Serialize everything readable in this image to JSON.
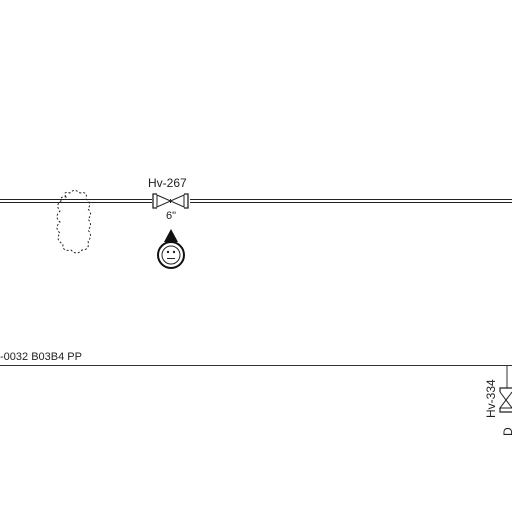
{
  "diagram": {
    "main_pipe": {
      "valve_tag": "Hv-267",
      "valve_size": "6\"",
      "indicator": "operator-faceplate-indicator"
    },
    "lower_pipe": {
      "line_label": "-0032 B03B4 PP",
      "valve_tag": "Hv-334",
      "valve_extra": "D"
    },
    "cloud_marker": "revision-cloud"
  },
  "colors": {
    "line": "#222222",
    "background": "#ffffff"
  }
}
